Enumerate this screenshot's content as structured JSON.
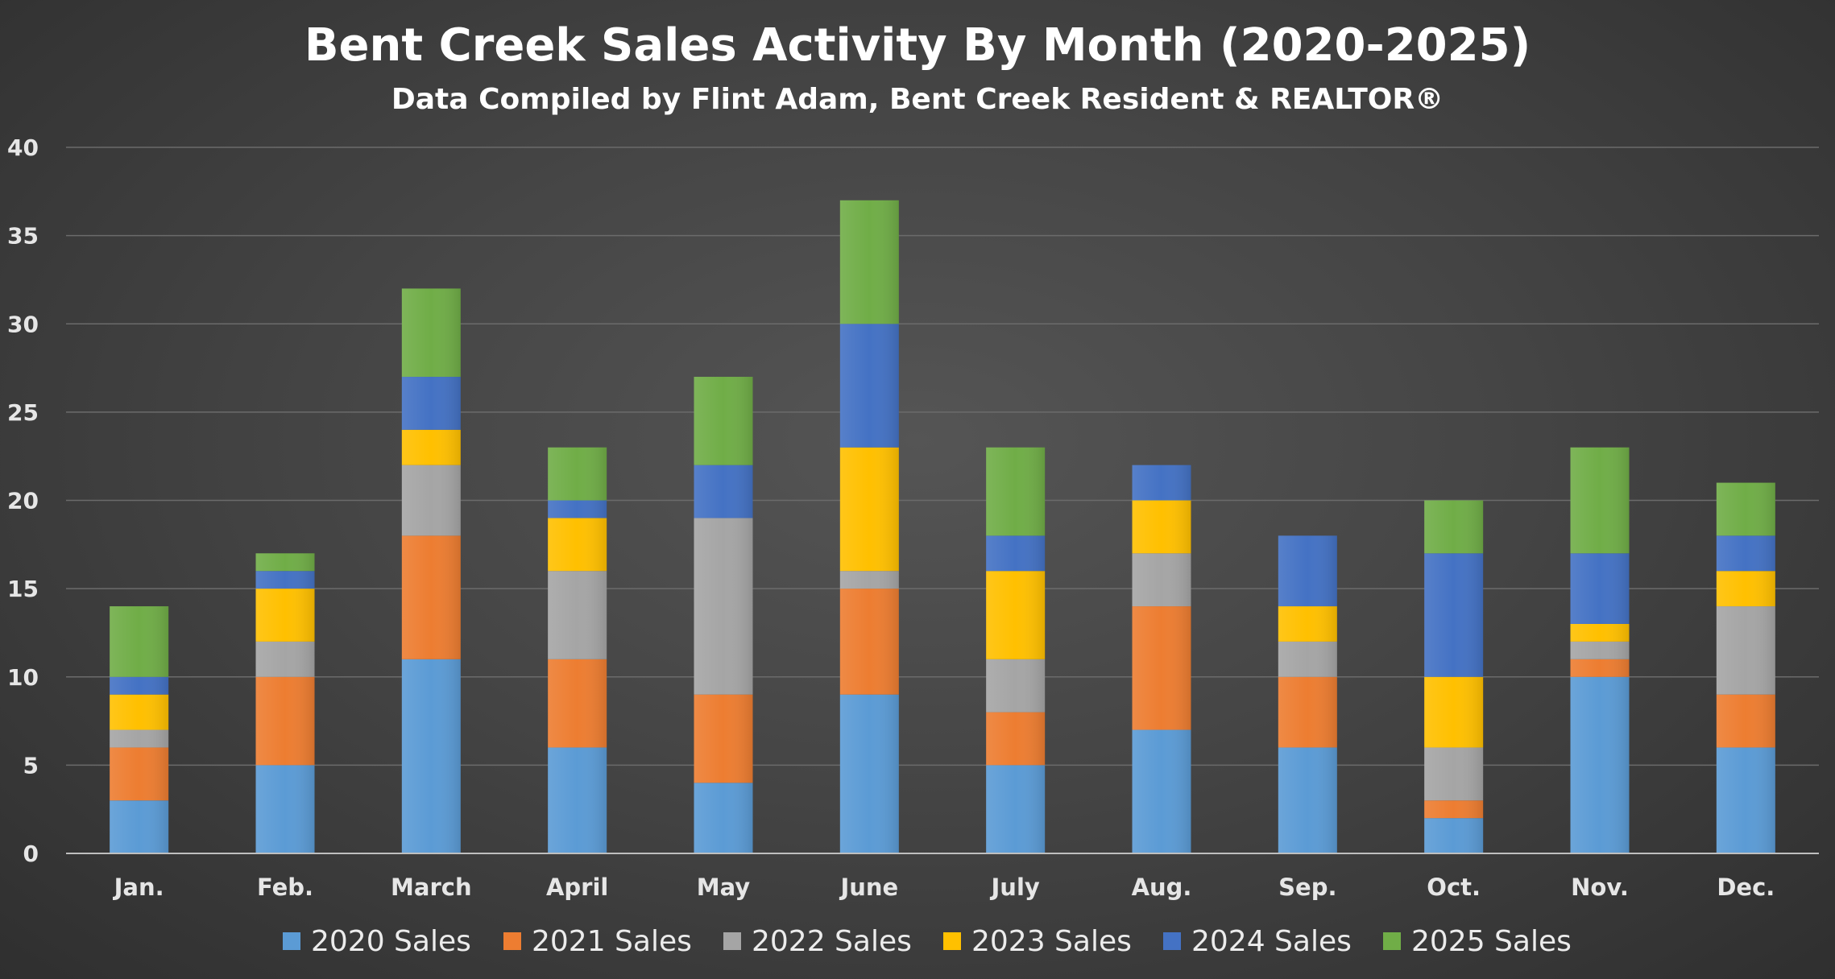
{
  "chart_data": {
    "type": "bar",
    "stacked": true,
    "title": "Bent Creek Sales Activity By Month (2020-2025)",
    "subtitle": "Data Compiled by Flint Adam, Bent Creek Resident & REALTOR®",
    "xlabel": "",
    "ylabel": "",
    "ylim": [
      0,
      40
    ],
    "yticks": [
      0,
      5,
      10,
      15,
      20,
      25,
      30,
      35,
      40
    ],
    "grid": true,
    "legend_position": "bottom",
    "categories": [
      "Jan.",
      "Feb.",
      "March",
      "April",
      "May",
      "June",
      "July",
      "Aug.",
      "Sep.",
      "Oct.",
      "Nov.",
      "Dec."
    ],
    "series": [
      {
        "name": "2020 Sales",
        "color": "#5b9bd5",
        "values": [
          3,
          5,
          11,
          6,
          4,
          9,
          5,
          7,
          6,
          2,
          10,
          6
        ]
      },
      {
        "name": "2021 Sales",
        "color": "#ed7d31",
        "values": [
          3,
          5,
          7,
          5,
          5,
          6,
          3,
          7,
          4,
          1,
          1,
          3
        ]
      },
      {
        "name": "2022 Sales",
        "color": "#a5a5a5",
        "values": [
          1,
          2,
          4,
          5,
          10,
          1,
          3,
          3,
          2,
          3,
          1,
          5
        ]
      },
      {
        "name": "2023 Sales",
        "color": "#ffc000",
        "values": [
          2,
          3,
          2,
          3,
          0,
          7,
          5,
          3,
          2,
          4,
          1,
          2
        ]
      },
      {
        "name": "2024 Sales",
        "color": "#4472c4",
        "values": [
          1,
          1,
          3,
          1,
          3,
          7,
          2,
          2,
          4,
          7,
          4,
          2
        ]
      },
      {
        "name": "2025 Sales",
        "color": "#70ad47",
        "values": [
          4,
          1,
          5,
          3,
          5,
          7,
          5,
          0,
          0,
          3,
          6,
          3
        ]
      }
    ]
  }
}
